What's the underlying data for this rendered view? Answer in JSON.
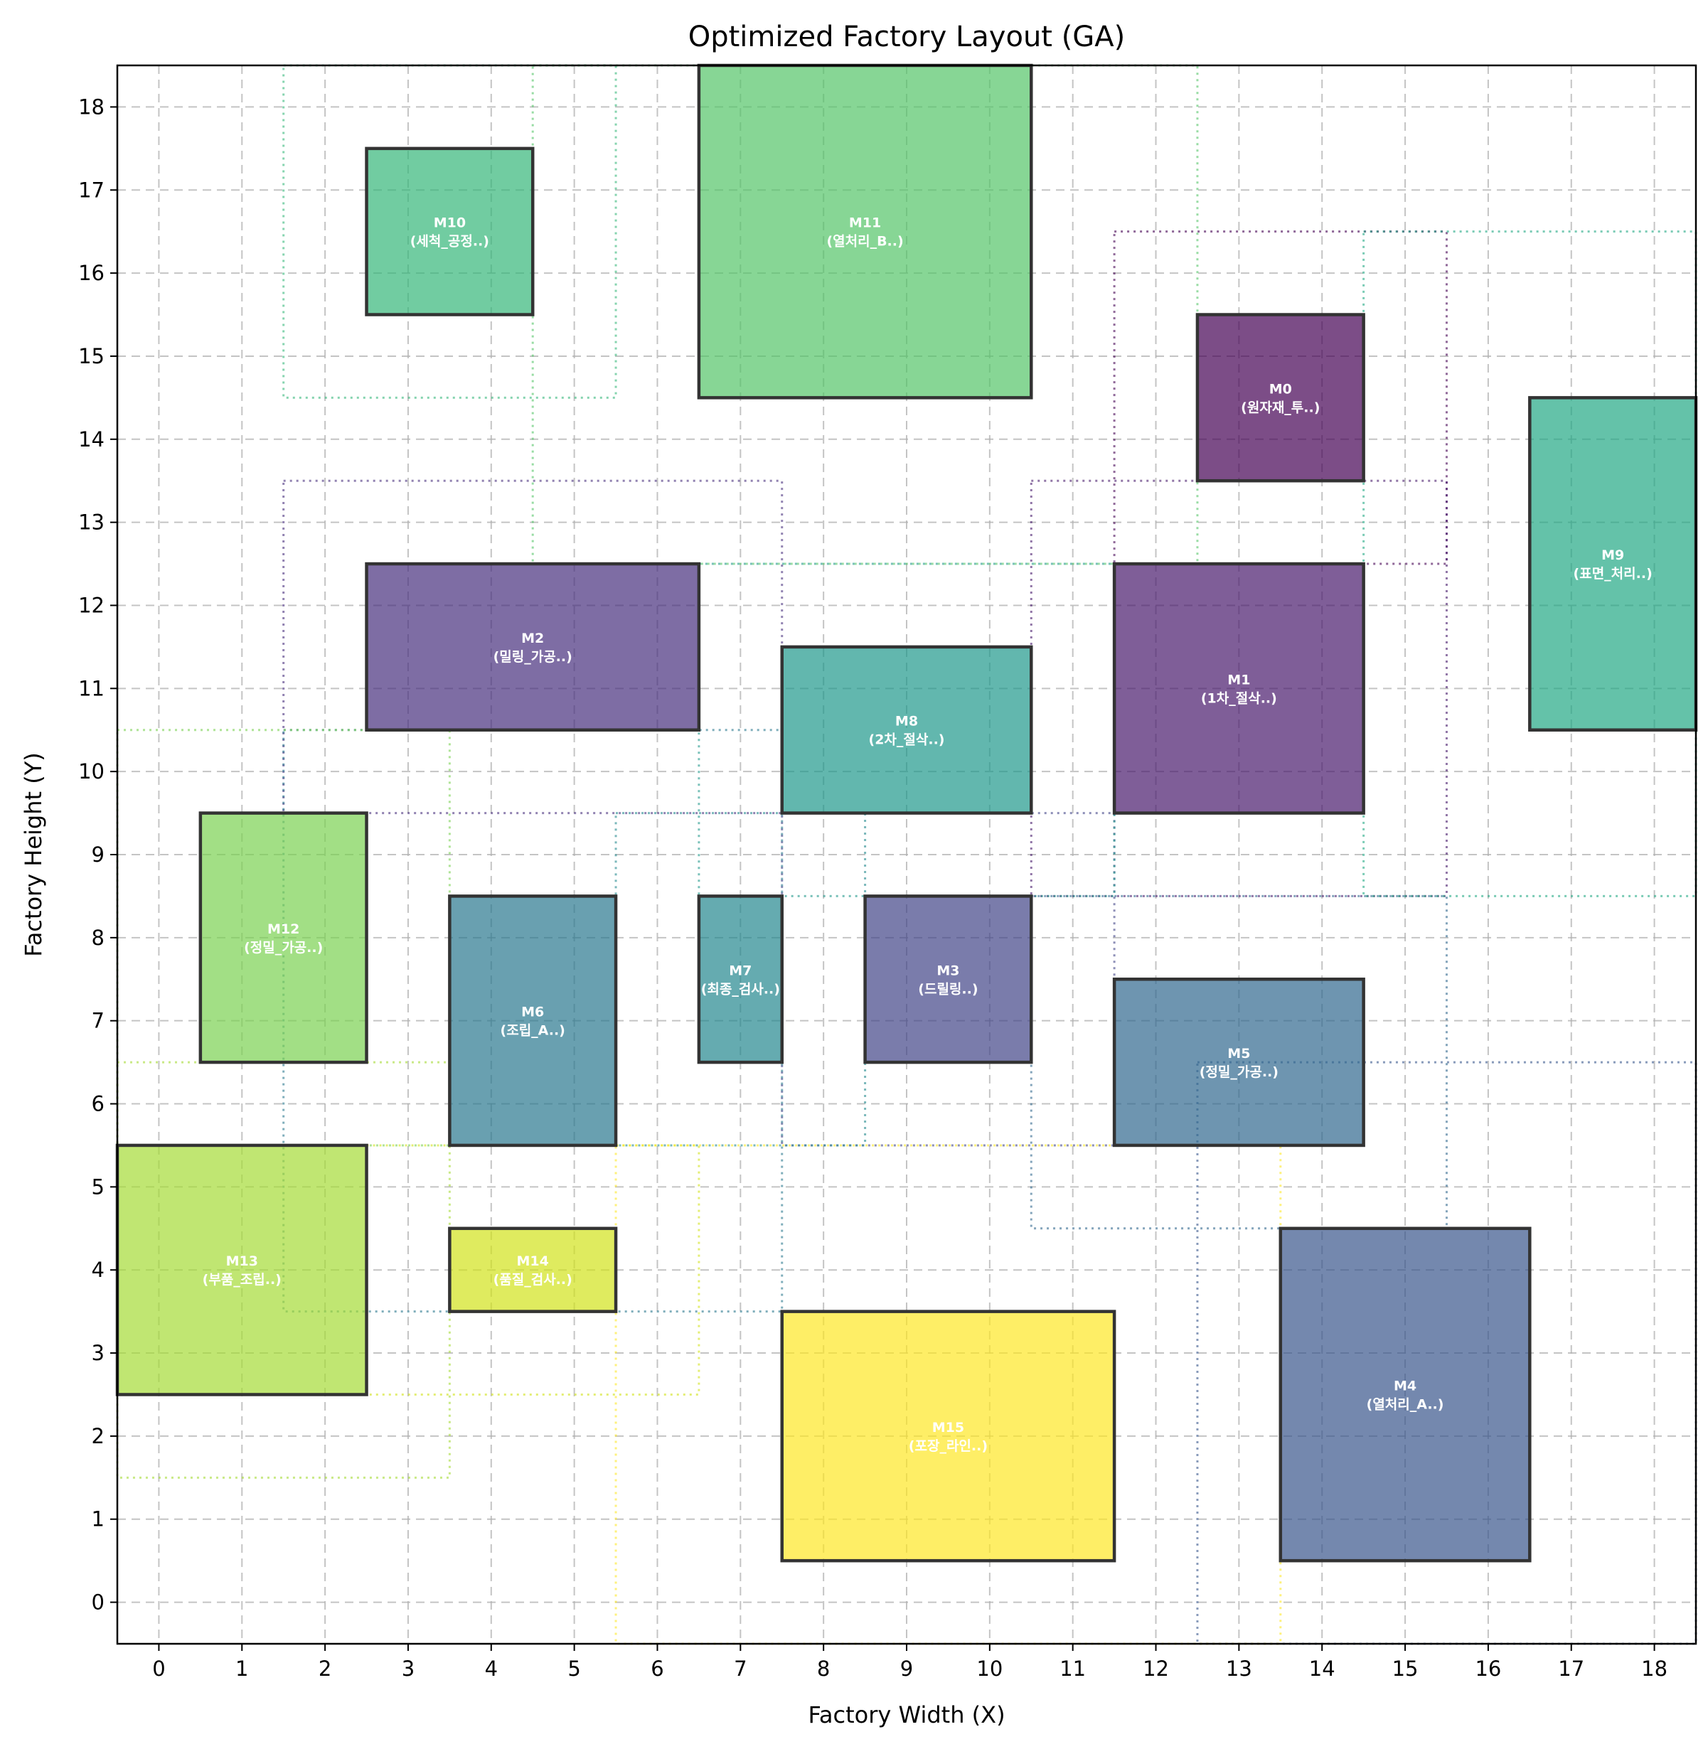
{
  "chart_data": {
    "type": "rectangles",
    "title": "Optimized Factory Layout (GA)",
    "xlabel": "Factory Width (X)",
    "ylabel": "Factory Height (Y)",
    "xlim": [
      -0.5,
      18.5
    ],
    "ylim": [
      -0.5,
      18.5
    ],
    "xticks": [
      0,
      1,
      2,
      3,
      4,
      5,
      6,
      7,
      8,
      9,
      10,
      11,
      12,
      13,
      14,
      15,
      16,
      17,
      18
    ],
    "yticks": [
      0,
      1,
      2,
      3,
      4,
      5,
      6,
      7,
      8,
      9,
      10,
      11,
      12,
      13,
      14,
      15,
      16,
      17,
      18
    ],
    "grid": true,
    "machines": [
      {
        "id": "M0",
        "name": "(원자재_투..)",
        "x0": 12.5,
        "y0": 13.5,
        "x1": 14.5,
        "y1": 15.5,
        "color": "#440154"
      },
      {
        "id": "M1",
        "name": "(1차_절삭..)",
        "x0": 11.5,
        "y0": 9.5,
        "x1": 14.5,
        "y1": 12.5,
        "color": "#481a6c"
      },
      {
        "id": "M2",
        "name": "(밀링_가공..)",
        "x0": 2.5,
        "y0": 10.5,
        "x1": 6.5,
        "y1": 12.5,
        "color": "#472f7d"
      },
      {
        "id": "M3",
        "name": "(드릴링..)",
        "x0": 8.5,
        "y0": 6.5,
        "x1": 10.5,
        "y1": 8.5,
        "color": "#414487"
      },
      {
        "id": "M4",
        "name": "(열처리_A..)",
        "x0": 13.5,
        "y0": 0.5,
        "x1": 16.5,
        "y1": 4.5,
        "color": "#39568c"
      },
      {
        "id": "M5",
        "name": "(정밀_가공..)",
        "x0": 11.5,
        "y0": 5.5,
        "x1": 14.5,
        "y1": 7.5,
        "color": "#31688e"
      },
      {
        "id": "M6",
        "name": "(조립_A..)",
        "x0": 3.5,
        "y0": 5.5,
        "x1": 5.5,
        "y1": 8.5,
        "color": "#2a788e"
      },
      {
        "id": "M7",
        "name": "(최종_검사..)",
        "x0": 6.5,
        "y0": 6.5,
        "x1": 7.5,
        "y1": 8.5,
        "color": "#23888e"
      },
      {
        "id": "M8",
        "name": "(2차_절삭..)",
        "x0": 7.5,
        "y0": 9.5,
        "x1": 10.5,
        "y1": 11.5,
        "color": "#1f988b"
      },
      {
        "id": "M9",
        "name": "(표면_처리..)",
        "x0": 16.5,
        "y0": 10.5,
        "x1": 18.5,
        "y1": 14.5,
        "color": "#22a884"
      },
      {
        "id": "M10",
        "name": "(세척_공정..)",
        "x0": 2.5,
        "y0": 15.5,
        "x1": 4.5,
        "y1": 17.5,
        "color": "#35b779"
      },
      {
        "id": "M11",
        "name": "(열처리_B..)",
        "x0": 6.5,
        "y0": 14.5,
        "x1": 10.5,
        "y1": 18.5,
        "color": "#54c568"
      },
      {
        "id": "M12",
        "name": "(정밀_가공..)",
        "x0": 0.5,
        "y0": 6.5,
        "x1": 2.5,
        "y1": 9.5,
        "color": "#7ad151"
      },
      {
        "id": "M13",
        "name": "(부품_조립..)",
        "x0": -0.5,
        "y0": 2.5,
        "x1": 2.5,
        "y1": 5.5,
        "color": "#a5db36"
      },
      {
        "id": "M14",
        "name": "(품질_검사..)",
        "x0": 3.5,
        "y0": 3.5,
        "x1": 5.5,
        "y1": 4.5,
        "color": "#d2e21b"
      },
      {
        "id": "M15",
        "name": "(포장_라인..)",
        "x0": 7.5,
        "y0": 0.5,
        "x1": 11.5,
        "y1": 3.5,
        "color": "#fde725"
      }
    ],
    "clearance_zones": [
      {
        "machine": "M0",
        "x0": 11.5,
        "y0": 12.5,
        "x1": 15.5,
        "y1": 16.5,
        "color": "#440154"
      },
      {
        "machine": "M1",
        "x0": 10.5,
        "y0": 8.5,
        "x1": 15.5,
        "y1": 13.5,
        "color": "#481a6c"
      },
      {
        "machine": "M2",
        "x0": 1.5,
        "y0": 9.5,
        "x1": 7.5,
        "y1": 13.5,
        "color": "#472f7d"
      },
      {
        "machine": "M3",
        "x0": 7.5,
        "y0": 5.5,
        "x1": 11.5,
        "y1": 9.5,
        "color": "#414487"
      },
      {
        "machine": "M4",
        "x0": 12.5,
        "y0": -0.5,
        "x1": 18.5,
        "y1": 6.5,
        "color": "#39568c"
      },
      {
        "machine": "M5",
        "x0": 10.5,
        "y0": 4.5,
        "x1": 15.5,
        "y1": 8.5,
        "color": "#31688e"
      },
      {
        "machine": "M6",
        "x0": 1.5,
        "y0": 3.5,
        "x1": 7.5,
        "y1": 10.5,
        "color": "#2a788e"
      },
      {
        "machine": "M7",
        "x0": 5.5,
        "y0": 5.5,
        "x1": 8.5,
        "y1": 9.5,
        "color": "#23888e"
      },
      {
        "machine": "M8",
        "x0": 6.5,
        "y0": 8.5,
        "x1": 11.5,
        "y1": 12.5,
        "color": "#1f988b"
      },
      {
        "machine": "M9",
        "x0": 14.5,
        "y0": 8.5,
        "x1": 18.5,
        "y1": 16.5,
        "color": "#22a884"
      },
      {
        "machine": "M10",
        "x0": 1.5,
        "y0": 14.5,
        "x1": 5.5,
        "y1": 18.5,
        "color": "#35b779"
      },
      {
        "machine": "M11",
        "x0": 4.5,
        "y0": 12.5,
        "x1": 12.5,
        "y1": 18.5,
        "color": "#54c568"
      },
      {
        "machine": "M12",
        "x0": -0.5,
        "y0": 5.5,
        "x1": 3.5,
        "y1": 10.5,
        "color": "#7ad151"
      },
      {
        "machine": "M13",
        "x0": -0.5,
        "y0": 1.5,
        "x1": 3.5,
        "y1": 6.5,
        "color": "#a5db36"
      },
      {
        "machine": "M14",
        "x0": 2.5,
        "y0": 2.5,
        "x1": 6.5,
        "y1": 5.5,
        "color": "#d2e21b"
      },
      {
        "machine": "M15",
        "x0": 5.5,
        "y0": -0.5,
        "x1": 13.5,
        "y1": 5.5,
        "color": "#fde725"
      }
    ]
  }
}
